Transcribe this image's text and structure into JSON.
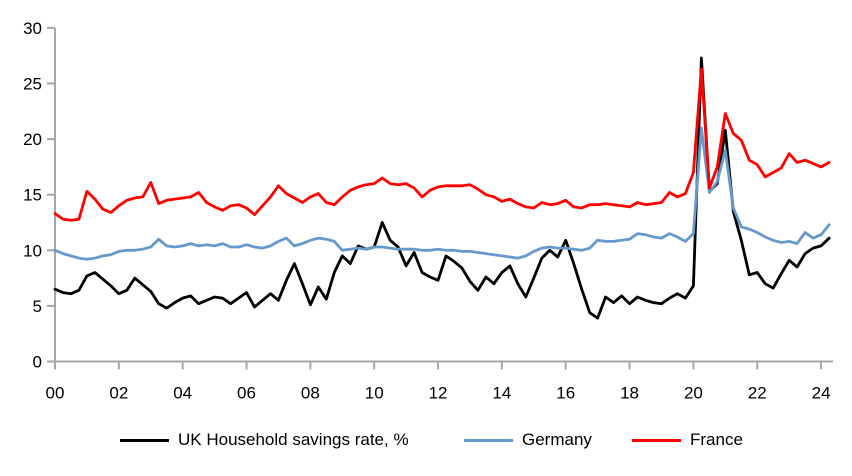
{
  "chart_data": {
    "type": "line",
    "title": "",
    "xlabel": "",
    "ylabel": "",
    "grid": false,
    "legend_position": "bottom",
    "axis_color": "#a6a6a6",
    "ylim": [
      0,
      30
    ],
    "xlim": [
      2000,
      2024.5
    ],
    "x_start_year": 2000,
    "x_step_years": 0.25,
    "y_axis_ticks": [
      {
        "label": "0",
        "value": 0
      },
      {
        "label": "5",
        "value": 5
      },
      {
        "label": "10",
        "value": 10
      },
      {
        "label": "15",
        "value": 15
      },
      {
        "label": "20",
        "value": 20
      },
      {
        "label": "25",
        "value": 25
      },
      {
        "label": "30",
        "value": 30
      }
    ],
    "x_axis_ticks": [
      {
        "label": "00",
        "year": 2000
      },
      {
        "label": "02",
        "year": 2002
      },
      {
        "label": "04",
        "year": 2004
      },
      {
        "label": "06",
        "year": 2006
      },
      {
        "label": "08",
        "year": 2008
      },
      {
        "label": "10",
        "year": 2010
      },
      {
        "label": "12",
        "year": 2012
      },
      {
        "label": "14",
        "year": 2014
      },
      {
        "label": "16",
        "year": 2016
      },
      {
        "label": "18",
        "year": 2018
      },
      {
        "label": "20",
        "year": 2020
      },
      {
        "label": "22",
        "year": 2022
      },
      {
        "label": "24",
        "year": 2024
      }
    ],
    "series": [
      {
        "name": "UK Household savings rate, %",
        "color": "#000000",
        "frequency": "quarterly",
        "values": [
          6.5,
          6.2,
          6.1,
          6.4,
          7.7,
          8.0,
          7.4,
          6.8,
          6.1,
          6.4,
          7.5,
          6.9,
          6.3,
          5.2,
          4.8,
          5.3,
          5.7,
          5.9,
          5.2,
          5.5,
          5.8,
          5.7,
          5.2,
          5.7,
          6.2,
          4.9,
          5.5,
          6.1,
          5.5,
          7.3,
          8.8,
          7.0,
          5.1,
          6.7,
          5.6,
          8.0,
          9.5,
          8.8,
          10.4,
          10.1,
          10.3,
          12.5,
          10.9,
          10.3,
          8.6,
          9.8,
          8.0,
          7.6,
          7.3,
          9.5,
          9.0,
          8.4,
          7.2,
          6.4,
          7.6,
          7.0,
          8.0,
          8.6,
          7.0,
          5.8,
          7.5,
          9.3,
          10.0,
          9.4,
          10.9,
          8.8,
          6.5,
          4.4,
          3.9,
          5.8,
          5.3,
          5.9,
          5.2,
          5.8,
          5.5,
          5.3,
          5.2,
          5.7,
          6.1,
          5.7,
          6.8,
          27.3,
          15.3,
          16.0,
          20.8,
          13.5,
          10.9,
          7.8,
          8.0,
          7.0,
          6.6,
          7.9,
          9.1,
          8.5,
          9.7,
          10.2,
          10.4,
          11.1
        ]
      },
      {
        "name": "Germany",
        "color": "#6699cc",
        "frequency": "quarterly",
        "values": [
          10.0,
          9.7,
          9.5,
          9.3,
          9.2,
          9.3,
          9.5,
          9.6,
          9.9,
          10.0,
          10.0,
          10.1,
          10.3,
          11.0,
          10.4,
          10.3,
          10.4,
          10.6,
          10.4,
          10.5,
          10.4,
          10.6,
          10.3,
          10.3,
          10.5,
          10.3,
          10.2,
          10.4,
          10.8,
          11.1,
          10.4,
          10.6,
          10.9,
          11.1,
          11.0,
          10.8,
          10.0,
          10.1,
          10.2,
          10.1,
          10.3,
          10.3,
          10.2,
          10.1,
          10.1,
          10.1,
          10.0,
          10.0,
          10.1,
          10.0,
          10.0,
          9.9,
          9.9,
          9.8,
          9.7,
          9.6,
          9.5,
          9.4,
          9.3,
          9.5,
          9.9,
          10.2,
          10.3,
          10.2,
          10.2,
          10.1,
          10.0,
          10.2,
          10.9,
          10.8,
          10.8,
          10.9,
          11.0,
          11.5,
          11.4,
          11.2,
          11.1,
          11.5,
          11.2,
          10.8,
          11.5,
          21.0,
          15.2,
          16.2,
          19.0,
          13.8,
          12.1,
          11.9,
          11.6,
          11.2,
          10.9,
          10.7,
          10.8,
          10.6,
          11.6,
          11.1,
          11.4,
          12.3
        ]
      },
      {
        "name": "France",
        "color": "#ff0000",
        "frequency": "quarterly",
        "values": [
          13.3,
          12.8,
          12.7,
          12.8,
          15.3,
          14.6,
          13.7,
          13.4,
          14.0,
          14.5,
          14.7,
          14.8,
          16.1,
          14.2,
          14.5,
          14.6,
          14.7,
          14.8,
          15.2,
          14.3,
          13.9,
          13.6,
          14.0,
          14.1,
          13.8,
          13.2,
          14.0,
          14.8,
          15.8,
          15.1,
          14.7,
          14.3,
          14.8,
          15.1,
          14.3,
          14.1,
          14.8,
          15.4,
          15.7,
          15.9,
          16.0,
          16.5,
          16.0,
          15.9,
          16.0,
          15.6,
          14.8,
          15.4,
          15.7,
          15.8,
          15.8,
          15.8,
          15.9,
          15.5,
          15.0,
          14.8,
          14.4,
          14.6,
          14.2,
          13.9,
          13.8,
          14.3,
          14.1,
          14.2,
          14.5,
          13.9,
          13.8,
          14.1,
          14.1,
          14.2,
          14.1,
          14.0,
          13.9,
          14.3,
          14.1,
          14.2,
          14.3,
          15.2,
          14.8,
          15.1,
          17.0,
          26.3,
          15.6,
          17.5,
          22.3,
          20.5,
          19.9,
          18.1,
          17.7,
          16.6,
          17.0,
          17.4,
          18.7,
          17.9,
          18.1,
          17.8,
          17.5,
          17.9
        ]
      }
    ]
  },
  "legend": {
    "items": [
      {
        "label": "UK Household savings rate, %"
      },
      {
        "label": "Germany"
      },
      {
        "label": "France"
      }
    ]
  }
}
